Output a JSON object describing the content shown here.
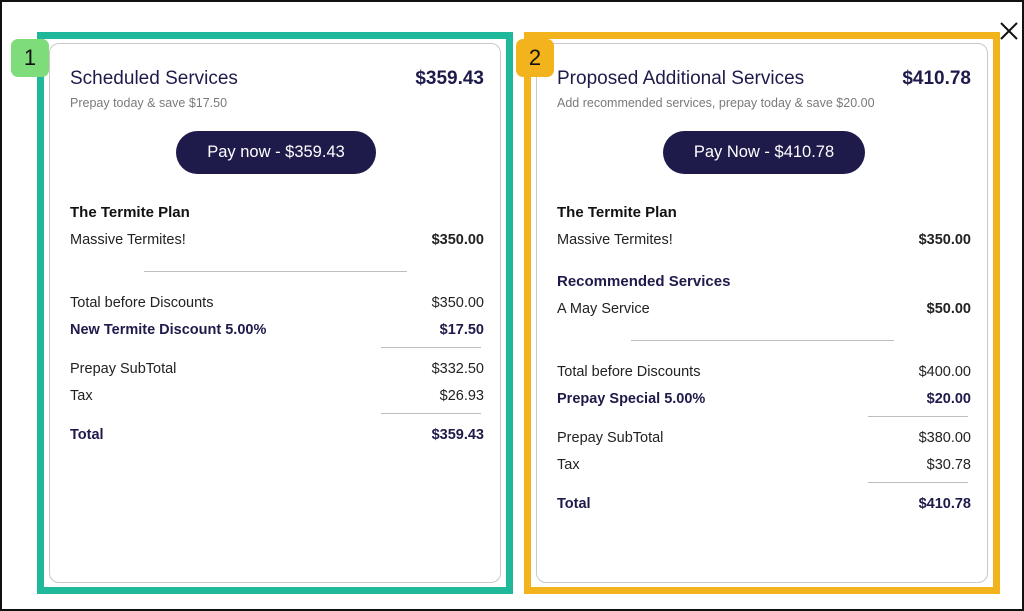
{
  "colors": {
    "navy": "#1e1b4b",
    "panel1_border": "#1fb89a",
    "panel2_border": "#f2b31d",
    "badge1": "#7fdc7a",
    "badge2": "#f2b31d"
  },
  "close": {
    "icon": "close-icon",
    "glyph": "✕"
  },
  "panel1": {
    "badge": "1",
    "title": "Scheduled Services",
    "title_amount": "$359.43",
    "subtitle": "Prepay today & save $17.50",
    "pay_button": "Pay now - $359.43",
    "plan_title": "The Termite Plan",
    "plan_item": {
      "label": "Massive Termites!",
      "value": "$350.00"
    },
    "total_before_discounts": {
      "label": "Total before Discounts",
      "value": "$350.00"
    },
    "discount": {
      "label": "New Termite Discount 5.00%",
      "value": "$17.50"
    },
    "prepay_subtotal": {
      "label": "Prepay SubTotal",
      "value": "$332.50"
    },
    "tax": {
      "label": "Tax",
      "value": "$26.93"
    },
    "total": {
      "label": "Total",
      "value": "$359.43"
    }
  },
  "panel2": {
    "badge": "2",
    "title": "Proposed Additional Services",
    "title_amount": "$410.78",
    "subtitle": "Add recommended services, prepay today & save $20.00",
    "pay_button": "Pay Now - $410.78",
    "plan_title": "The Termite Plan",
    "plan_item": {
      "label": "Massive Termites!",
      "value": "$350.00"
    },
    "recommended_title": "Recommended Services",
    "recommended_item": {
      "label": "A May Service",
      "value": "$50.00"
    },
    "total_before_discounts": {
      "label": "Total before Discounts",
      "value": "$400.00"
    },
    "discount": {
      "label": "Prepay Special 5.00%",
      "value": "$20.00"
    },
    "prepay_subtotal": {
      "label": "Prepay SubTotal",
      "value": "$380.00"
    },
    "tax": {
      "label": "Tax",
      "value": "$30.78"
    },
    "total": {
      "label": "Total",
      "value": "$410.78"
    }
  }
}
